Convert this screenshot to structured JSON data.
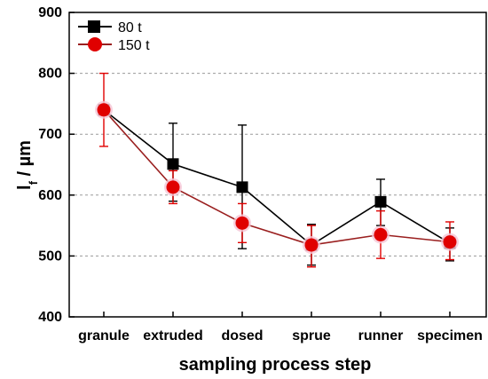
{
  "chart_data": {
    "type": "line",
    "categories": [
      "granule",
      "extruded",
      "dosed",
      "sprue",
      "runner",
      "specimen"
    ],
    "xlabel": "sampling process step",
    "ylabel": {
      "main": "l",
      "sub": "f",
      "rest": " / µm"
    },
    "ylim": [
      400,
      900
    ],
    "yticks": [
      400,
      500,
      600,
      700,
      800,
      900
    ],
    "grid": "horizontal dashed at 500, 600, 700, 800",
    "legend_position": "top-left",
    "series": [
      {
        "name": "80 t",
        "color": "#000000",
        "marker": "square",
        "values": [
          740,
          651,
          613,
          518,
          589,
          521
        ],
        "error_low": [
          736,
          590,
          512,
          485,
          550,
          492
        ],
        "error_high": [
          744,
          718,
          715,
          552,
          626,
          546
        ]
      },
      {
        "name": "150 t",
        "color": "#e00000",
        "line_color": "#9a1f1f",
        "marker": "circle",
        "values": [
          740,
          613,
          554,
          518,
          535,
          523
        ],
        "error_low": [
          680,
          586,
          522,
          482,
          496,
          494
        ],
        "error_high": [
          800,
          640,
          586,
          550,
          574,
          556
        ]
      }
    ]
  }
}
